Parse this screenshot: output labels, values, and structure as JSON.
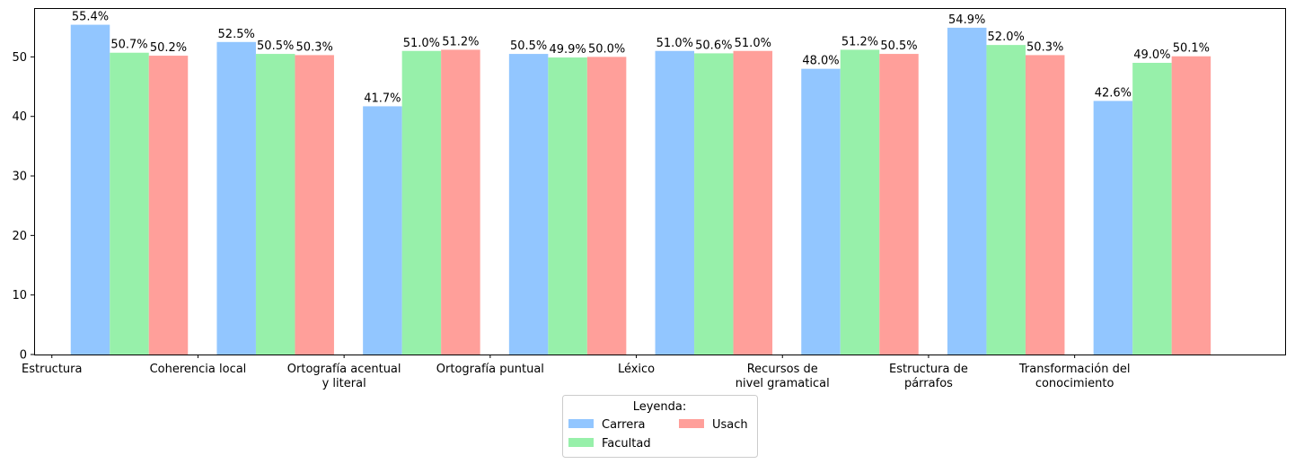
{
  "chart_data": {
    "type": "bar",
    "categories": [
      [
        "Estructura"
      ],
      [
        "Coherencia local"
      ],
      [
        "Ortografía acentual",
        "y literal"
      ],
      [
        "Ortografía puntual"
      ],
      [
        "Léxico"
      ],
      [
        "Recursos de",
        "nivel gramatical"
      ],
      [
        "Estructura de",
        "párrafos"
      ],
      [
        "Transformación del",
        "conocimiento"
      ]
    ],
    "series": [
      {
        "name": "Carrera",
        "color": "#92c6ff",
        "values": [
          55.4,
          52.5,
          41.7,
          50.5,
          51.0,
          48.0,
          54.9,
          42.6
        ]
      },
      {
        "name": "Facultad",
        "color": "#97f0aa",
        "values": [
          50.7,
          50.5,
          51.0,
          49.9,
          50.6,
          51.2,
          52.0,
          49.0
        ]
      },
      {
        "name": "Usach",
        "color": "#ff9f9a",
        "values": [
          50.2,
          50.3,
          51.2,
          50.0,
          51.0,
          50.5,
          50.3,
          50.1
        ]
      }
    ],
    "value_suffix": "%",
    "ylim": [
      0,
      58.2
    ],
    "yticks": [
      0,
      10,
      20,
      30,
      40,
      50
    ],
    "legend": {
      "title": "Leyenda:",
      "placement": "bottom-center",
      "columns": 2
    },
    "grid": false
  }
}
